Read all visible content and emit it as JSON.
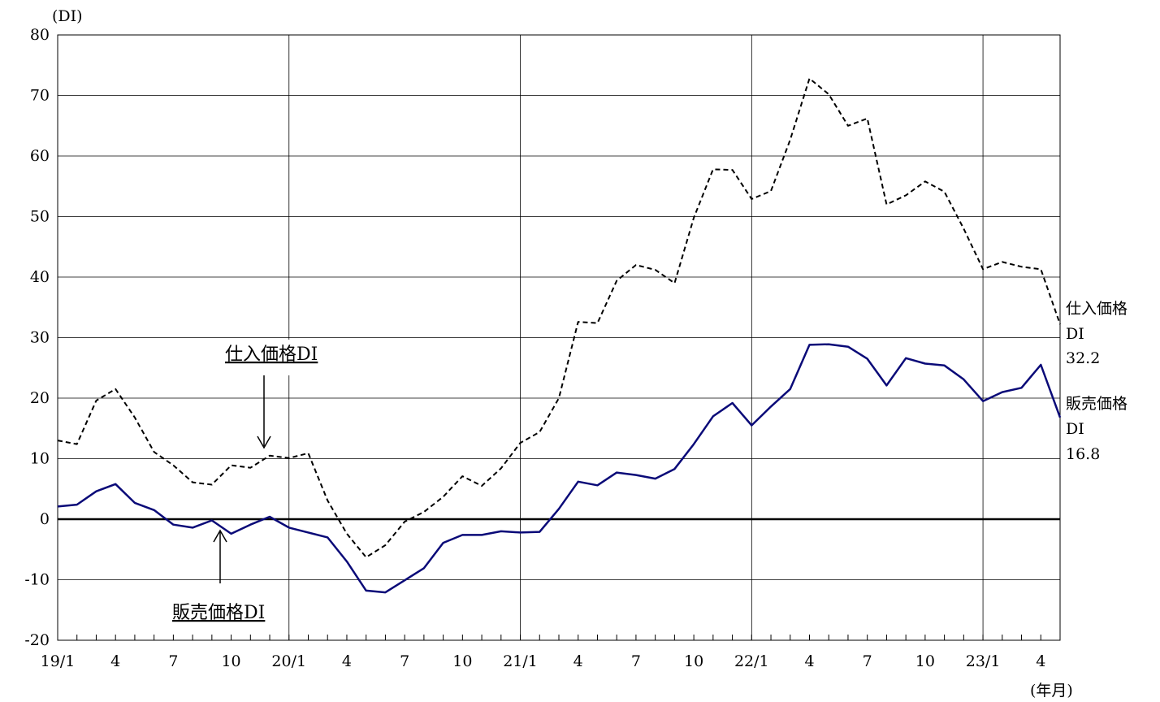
{
  "chart_data": {
    "type": "line",
    "y_unit": "(DI)",
    "x_unit": "(年月)",
    "ylim": [
      -20,
      80
    ],
    "yticks": [
      -20,
      -10,
      0,
      10,
      20,
      30,
      40,
      50,
      60,
      70,
      80
    ],
    "xticks": [
      {
        "label": "19/1",
        "index": 0
      },
      {
        "label": "4",
        "index": 3
      },
      {
        "label": "7",
        "index": 6
      },
      {
        "label": "10",
        "index": 9
      },
      {
        "label": "20/1",
        "index": 12
      },
      {
        "label": "4",
        "index": 15
      },
      {
        "label": "7",
        "index": 18
      },
      {
        "label": "10",
        "index": 21
      },
      {
        "label": "21/1",
        "index": 24
      },
      {
        "label": "4",
        "index": 27
      },
      {
        "label": "7",
        "index": 30
      },
      {
        "label": "10",
        "index": 33
      },
      {
        "label": "22/1",
        "index": 36
      },
      {
        "label": "4",
        "index": 39
      },
      {
        "label": "7",
        "index": 42
      },
      {
        "label": "10",
        "index": 45
      },
      {
        "label": "23/1",
        "index": 48
      },
      {
        "label": "4",
        "index": 51
      }
    ],
    "x": [
      "19/1",
      "19/2",
      "19/3",
      "19/4",
      "19/5",
      "19/6",
      "19/7",
      "19/8",
      "19/9",
      "19/10",
      "19/11",
      "19/12",
      "20/1",
      "20/2",
      "20/3",
      "20/4",
      "20/5",
      "20/6",
      "20/7",
      "20/8",
      "20/9",
      "20/10",
      "20/11",
      "20/12",
      "21/1",
      "21/2",
      "21/3",
      "21/4",
      "21/5",
      "21/6",
      "21/7",
      "21/8",
      "21/9",
      "21/10",
      "21/11",
      "21/12",
      "22/1",
      "22/2",
      "22/3",
      "22/4",
      "22/5",
      "22/6",
      "22/7",
      "22/8",
      "22/9",
      "22/10",
      "22/11",
      "22/12",
      "23/1",
      "23/2",
      "23/3",
      "23/4",
      "23/5"
    ],
    "series": [
      {
        "name": "仕入価格DI",
        "style": "dashed",
        "color": "#000000",
        "values": [
          13.0,
          12.4,
          19.6,
          21.5,
          16.8,
          11.1,
          8.9,
          6.1,
          5.7,
          8.9,
          8.5,
          10.5,
          10.1,
          10.9,
          3.1,
          -2.4,
          -6.3,
          -4.3,
          -0.4,
          1.2,
          3.7,
          7.1,
          5.5,
          8.4,
          12.6,
          14.4,
          20.0,
          32.6,
          32.4,
          39.4,
          42.0,
          41.2,
          39.0,
          49.8,
          57.8,
          57.7,
          52.9,
          54.2,
          62.7,
          72.8,
          70.2,
          65.0,
          66.2,
          52.0,
          53.5,
          55.8,
          54.1,
          48.0,
          41.3,
          42.5,
          41.7,
          41.3,
          32.2
        ]
      },
      {
        "name": "販売価格DI",
        "style": "solid",
        "color": "#0a0a78",
        "values": [
          2.1,
          2.4,
          4.6,
          5.8,
          2.7,
          1.5,
          -0.9,
          -1.4,
          -0.2,
          -2.4,
          -0.9,
          0.4,
          -1.4,
          -2.2,
          -3.0,
          -7.0,
          -11.8,
          -12.1,
          -10.1,
          -8.1,
          -3.9,
          -2.6,
          -2.6,
          -2.0,
          -2.2,
          -2.1,
          1.7,
          6.2,
          5.6,
          7.7,
          7.3,
          6.7,
          8.3,
          12.4,
          17.0,
          19.2,
          15.5,
          18.6,
          21.5,
          28.8,
          28.9,
          28.5,
          26.5,
          22.1,
          26.6,
          25.7,
          25.4,
          23.1,
          19.5,
          21.0,
          21.7,
          25.5,
          16.8
        ]
      }
    ],
    "annotations": {
      "purchase_label": "仕入価格DI",
      "sales_label": "販売価格DI",
      "purchase_end_name_1": "仕入価格",
      "purchase_end_name_2": "DI",
      "purchase_end_value": "32.2",
      "sales_end_name_1": "販売価格",
      "sales_end_name_2": "DI",
      "sales_end_value": "16.8"
    },
    "grid": true,
    "legend": "none"
  }
}
